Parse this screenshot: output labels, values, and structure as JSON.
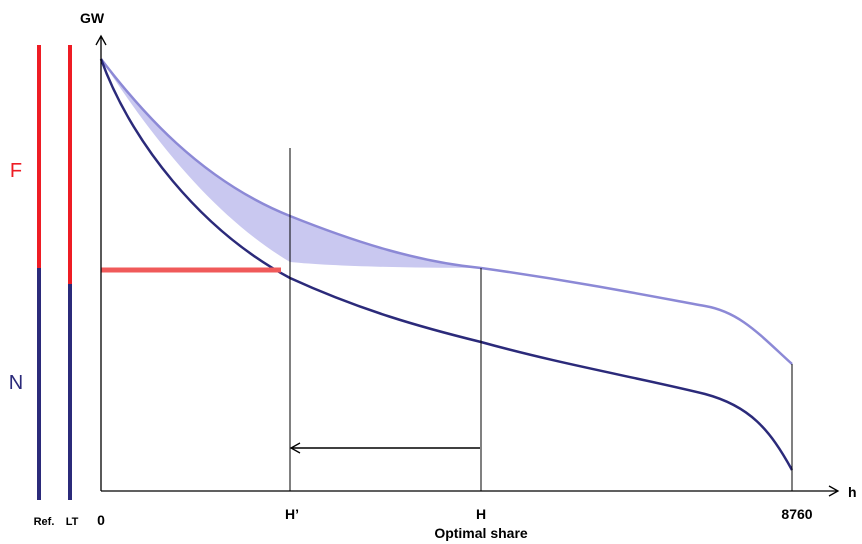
{
  "axes": {
    "y_label": "GW",
    "x_label": "h",
    "origin_label": "0",
    "tick_h_prime": "H’",
    "tick_h": "H",
    "tick_8760": "8760",
    "subtitle": "Optimal share"
  },
  "bars": {
    "ref_label": "Ref.",
    "lt_label": "LT",
    "f_label": "F",
    "n_label": "N"
  },
  "colors": {
    "red": "#ee1c24",
    "navy": "#2b2a7a",
    "light_curve": "#8c89d6",
    "shade": "#c9c8f0",
    "red_line": "#f05a5a",
    "black": "#000000"
  }
}
